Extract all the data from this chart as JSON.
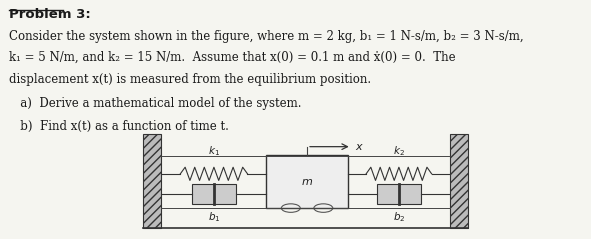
{
  "title": "Problem 3:",
  "body_text": [
    "Consider the system shown in the figure, where m = 2 kg, b₁ = 1 N-s/m, b₂ = 3 N-s/m,",
    "k₁ = 5 N/m, and k₂ = 15 N/m.  Assume that x(0) = 0.1 m and ẋ(0) = 0.  The",
    "displacement x(t) is measured from the equilibrium position.",
    "   a)  Derive a mathematical model of the system.",
    "   b)  Find x(t) as a function of time t."
  ],
  "bg_color": "#f5f5f0",
  "text_color": "#1a1a1a"
}
